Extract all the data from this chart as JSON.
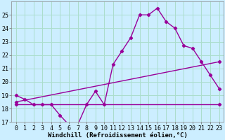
{
  "background_color": "#cceeff",
  "grid_color": "#aaddcc",
  "line_color": "#990099",
  "marker": "D",
  "marker_size": 2.2,
  "line_width": 1.0,
  "xlabel": "Windchill (Refroidissement éolien,°C)",
  "xlabel_fontsize": 6.5,
  "tick_fontsize": 6,
  "ylim": [
    17,
    26
  ],
  "xlim": [
    -0.5,
    23.5
  ],
  "yticks": [
    17,
    18,
    19,
    20,
    21,
    22,
    23,
    24,
    25
  ],
  "xticks": [
    0,
    1,
    2,
    3,
    4,
    5,
    6,
    7,
    8,
    9,
    10,
    11,
    12,
    13,
    14,
    15,
    16,
    17,
    18,
    19,
    20,
    21,
    22,
    23
  ],
  "curve1_x": [
    0,
    1,
    2,
    3,
    4,
    5,
    6,
    7,
    8,
    9,
    10,
    11,
    12,
    13,
    14,
    15,
    16,
    17,
    18,
    19,
    20,
    21,
    22,
    23
  ],
  "curve1_y": [
    19.0,
    18.7,
    18.3,
    18.3,
    18.3,
    17.5,
    16.8,
    16.8,
    18.3,
    19.3,
    18.3,
    21.3,
    22.3,
    23.3,
    25.0,
    25.0,
    25.5,
    24.5,
    24.0,
    22.7,
    22.5,
    21.5,
    20.5,
    19.5
  ],
  "curve2_x": [
    0,
    23
  ],
  "curve2_y": [
    18.3,
    18.3
  ],
  "curve3_x": [
    0,
    23
  ],
  "curve3_y": [
    18.5,
    21.5
  ]
}
